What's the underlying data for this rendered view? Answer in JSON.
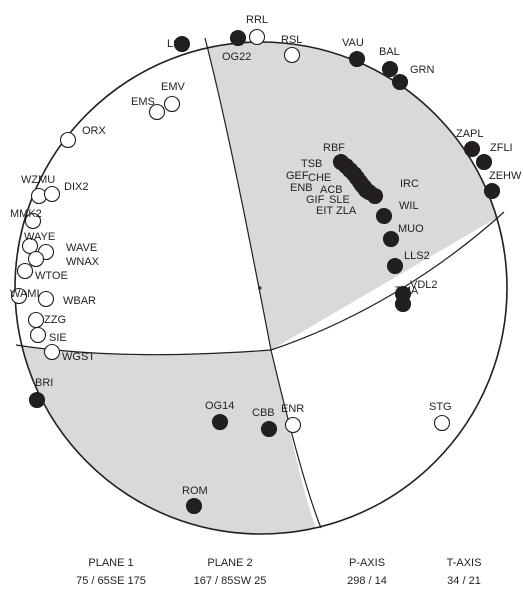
{
  "colors": {
    "compression_fill": "#d9d9db",
    "dilatation_fill": "#ffffff",
    "outline": "#231f20",
    "station_up": "#231f20",
    "station_down": "#ffffff"
  },
  "stations": [
    {
      "name": "RRL",
      "polarity": "down"
    },
    {
      "name": "OG22",
      "polarity": "up"
    },
    {
      "name": "LSD",
      "polarity": "up"
    },
    {
      "name": "RSL",
      "polarity": "down"
    },
    {
      "name": "VAU",
      "polarity": "up"
    },
    {
      "name": "BAL",
      "polarity": "up"
    },
    {
      "name": "GRN",
      "polarity": "up"
    },
    {
      "name": "EMV",
      "polarity": "down"
    },
    {
      "name": "EMS",
      "polarity": "down"
    },
    {
      "name": "ORX",
      "polarity": "down"
    },
    {
      "name": "ZAPL",
      "polarity": "up"
    },
    {
      "name": "ZFLI",
      "polarity": "up"
    },
    {
      "name": "ZEHW",
      "polarity": "up"
    },
    {
      "name": "RBF",
      "polarity": "up"
    },
    {
      "name": "TSB",
      "polarity": "up"
    },
    {
      "name": "GEF",
      "polarity": "up"
    },
    {
      "name": "CHE",
      "polarity": "up"
    },
    {
      "name": "ENB",
      "polarity": "up"
    },
    {
      "name": "ACB",
      "polarity": "up"
    },
    {
      "name": "GIF",
      "polarity": "up"
    },
    {
      "name": "SLE",
      "polarity": "up"
    },
    {
      "name": "EIT",
      "polarity": "up"
    },
    {
      "name": "ZLA",
      "polarity": "up"
    },
    {
      "name": "IRC",
      "polarity": "up"
    },
    {
      "name": "WIL",
      "polarity": "up"
    },
    {
      "name": "MUO",
      "polarity": "up"
    },
    {
      "name": "LLS2",
      "polarity": "up"
    },
    {
      "name": "VDL2",
      "polarity": "up"
    },
    {
      "name": "TMA",
      "polarity": "up"
    },
    {
      "name": "WZMU",
      "polarity": "down"
    },
    {
      "name": "DIX2",
      "polarity": "down"
    },
    {
      "name": "MMK2",
      "polarity": "down"
    },
    {
      "name": "WAYE",
      "polarity": "down"
    },
    {
      "name": "WAVE",
      "polarity": "down"
    },
    {
      "name": "WNAX",
      "polarity": "down"
    },
    {
      "name": "WTOE",
      "polarity": "down"
    },
    {
      "name": "WAMI",
      "polarity": "down"
    },
    {
      "name": "WBAR",
      "polarity": "down"
    },
    {
      "name": "ZZG",
      "polarity": "down"
    },
    {
      "name": "SIE",
      "polarity": "down"
    },
    {
      "name": "WGST",
      "polarity": "down"
    },
    {
      "name": "BRI",
      "polarity": "up"
    },
    {
      "name": "OG14",
      "polarity": "up"
    },
    {
      "name": "CBB",
      "polarity": "up"
    },
    {
      "name": "ENR",
      "polarity": "down"
    },
    {
      "name": "STG",
      "polarity": "down"
    },
    {
      "name": "ROM",
      "polarity": "up"
    }
  ],
  "captions": {
    "plane1": {
      "title": "PLANE 1",
      "value": "75 / 65SE  175"
    },
    "plane2": {
      "title": "PLANE 2",
      "value": "167 / 85SW  25"
    },
    "p_axis": {
      "title": "P-AXIS",
      "value": "298 / 14"
    },
    "t_axis": {
      "title": "T-AXIS",
      "value": "34 / 21"
    }
  }
}
